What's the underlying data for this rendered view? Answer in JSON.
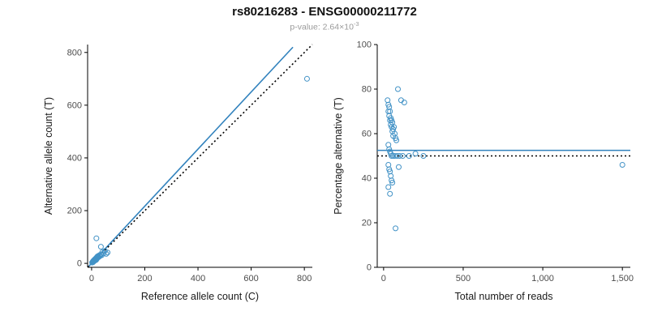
{
  "title": "rs80216283 - ENSG00000211772",
  "subtitle": {
    "prefix": "p-value: 2.64×10",
    "exponent": "-3"
  },
  "colors": {
    "points": "#4292c6",
    "fit_line": "#3182bd",
    "reference_line": "#000000"
  },
  "chart_data": [
    {
      "type": "scatter",
      "title": "",
      "xlabel": "Reference allele count (C)",
      "ylabel": "Alternative allele count (T)",
      "xlim": [
        -15,
        830
      ],
      "ylim": [
        -15,
        830
      ],
      "xticks": {
        "values": [
          0,
          200,
          400,
          600,
          800
        ],
        "labels": [
          "0",
          "200",
          "400",
          "600",
          "800"
        ]
      },
      "yticks": {
        "values": [
          0,
          200,
          400,
          600,
          800
        ],
        "labels": [
          "0",
          "200",
          "400",
          "600",
          "800"
        ]
      },
      "points": [
        [
          2,
          3
        ],
        [
          4,
          6
        ],
        [
          5,
          4
        ],
        [
          6,
          9
        ],
        [
          7,
          7
        ],
        [
          8,
          11
        ],
        [
          9,
          8
        ],
        [
          10,
          13
        ],
        [
          11,
          10
        ],
        [
          12,
          15
        ],
        [
          13,
          11
        ],
        [
          14,
          17
        ],
        [
          15,
          14
        ],
        [
          16,
          19
        ],
        [
          17,
          13
        ],
        [
          18,
          21
        ],
        [
          19,
          16
        ],
        [
          20,
          23
        ],
        [
          21,
          19
        ],
        [
          22,
          26
        ],
        [
          24,
          22
        ],
        [
          25,
          28
        ],
        [
          27,
          24
        ],
        [
          30,
          31
        ],
        [
          32,
          28
        ],
        [
          35,
          34
        ],
        [
          38,
          31
        ],
        [
          40,
          42
        ],
        [
          45,
          38
        ],
        [
          50,
          47
        ],
        [
          55,
          36
        ],
        [
          60,
          41
        ],
        [
          18,
          95
        ],
        [
          35,
          63
        ],
        [
          810,
          700
        ]
      ],
      "lines": [
        {
          "name": "fit-line",
          "style": "solid",
          "color_key": "fit_line",
          "points": [
            [
              -15,
              -16
            ],
            [
              757,
              820
            ]
          ]
        },
        {
          "name": "identity-line",
          "style": "dotted",
          "color_key": "reference_line",
          "points": [
            [
              -15,
              -15
            ],
            [
              830,
              830
            ]
          ]
        }
      ]
    },
    {
      "type": "scatter",
      "title": "",
      "xlabel": "Total number of reads",
      "ylabel": "Percentage alternative (T)",
      "xlim": [
        -40,
        1550
      ],
      "ylim": [
        0,
        100
      ],
      "xticks": {
        "values": [
          0,
          500,
          1000,
          1500
        ],
        "labels": [
          "0",
          "500",
          "1,000",
          "1,500"
        ]
      },
      "yticks": {
        "values": [
          0,
          20,
          40,
          60,
          80,
          100
        ],
        "labels": [
          "0",
          "20",
          "40",
          "60",
          "80",
          "100"
        ]
      },
      "points": [
        [
          25,
          75
        ],
        [
          30,
          73
        ],
        [
          30,
          70
        ],
        [
          35,
          72
        ],
        [
          35,
          68
        ],
        [
          40,
          70
        ],
        [
          40,
          66
        ],
        [
          45,
          67
        ],
        [
          45,
          64
        ],
        [
          50,
          66
        ],
        [
          50,
          63
        ],
        [
          55,
          65
        ],
        [
          55,
          61
        ],
        [
          60,
          62
        ],
        [
          60,
          59
        ],
        [
          65,
          63
        ],
        [
          70,
          60
        ],
        [
          75,
          58
        ],
        [
          80,
          57
        ],
        [
          90,
          80
        ],
        [
          110,
          75
        ],
        [
          130,
          74
        ],
        [
          30,
          55
        ],
        [
          35,
          53
        ],
        [
          40,
          52
        ],
        [
          45,
          51
        ],
        [
          50,
          50
        ],
        [
          60,
          50
        ],
        [
          70,
          50
        ],
        [
          85,
          50
        ],
        [
          100,
          50
        ],
        [
          120,
          50
        ],
        [
          160,
          50
        ],
        [
          200,
          51
        ],
        [
          250,
          50
        ],
        [
          30,
          46
        ],
        [
          35,
          44
        ],
        [
          40,
          43
        ],
        [
          45,
          41
        ],
        [
          50,
          39
        ],
        [
          55,
          38
        ],
        [
          30,
          36
        ],
        [
          40,
          33
        ],
        [
          75,
          17.5
        ],
        [
          95,
          45
        ],
        [
          1500,
          46
        ]
      ],
      "lines": [
        {
          "name": "fit-line",
          "style": "solid",
          "color_key": "fit_line",
          "points": [
            [
              -40,
              52.5
            ],
            [
              1550,
              52.5
            ]
          ]
        },
        {
          "name": "reference-line",
          "style": "dotted",
          "color_key": "reference_line",
          "points": [
            [
              -40,
              50
            ],
            [
              1550,
              50
            ]
          ]
        }
      ]
    }
  ]
}
